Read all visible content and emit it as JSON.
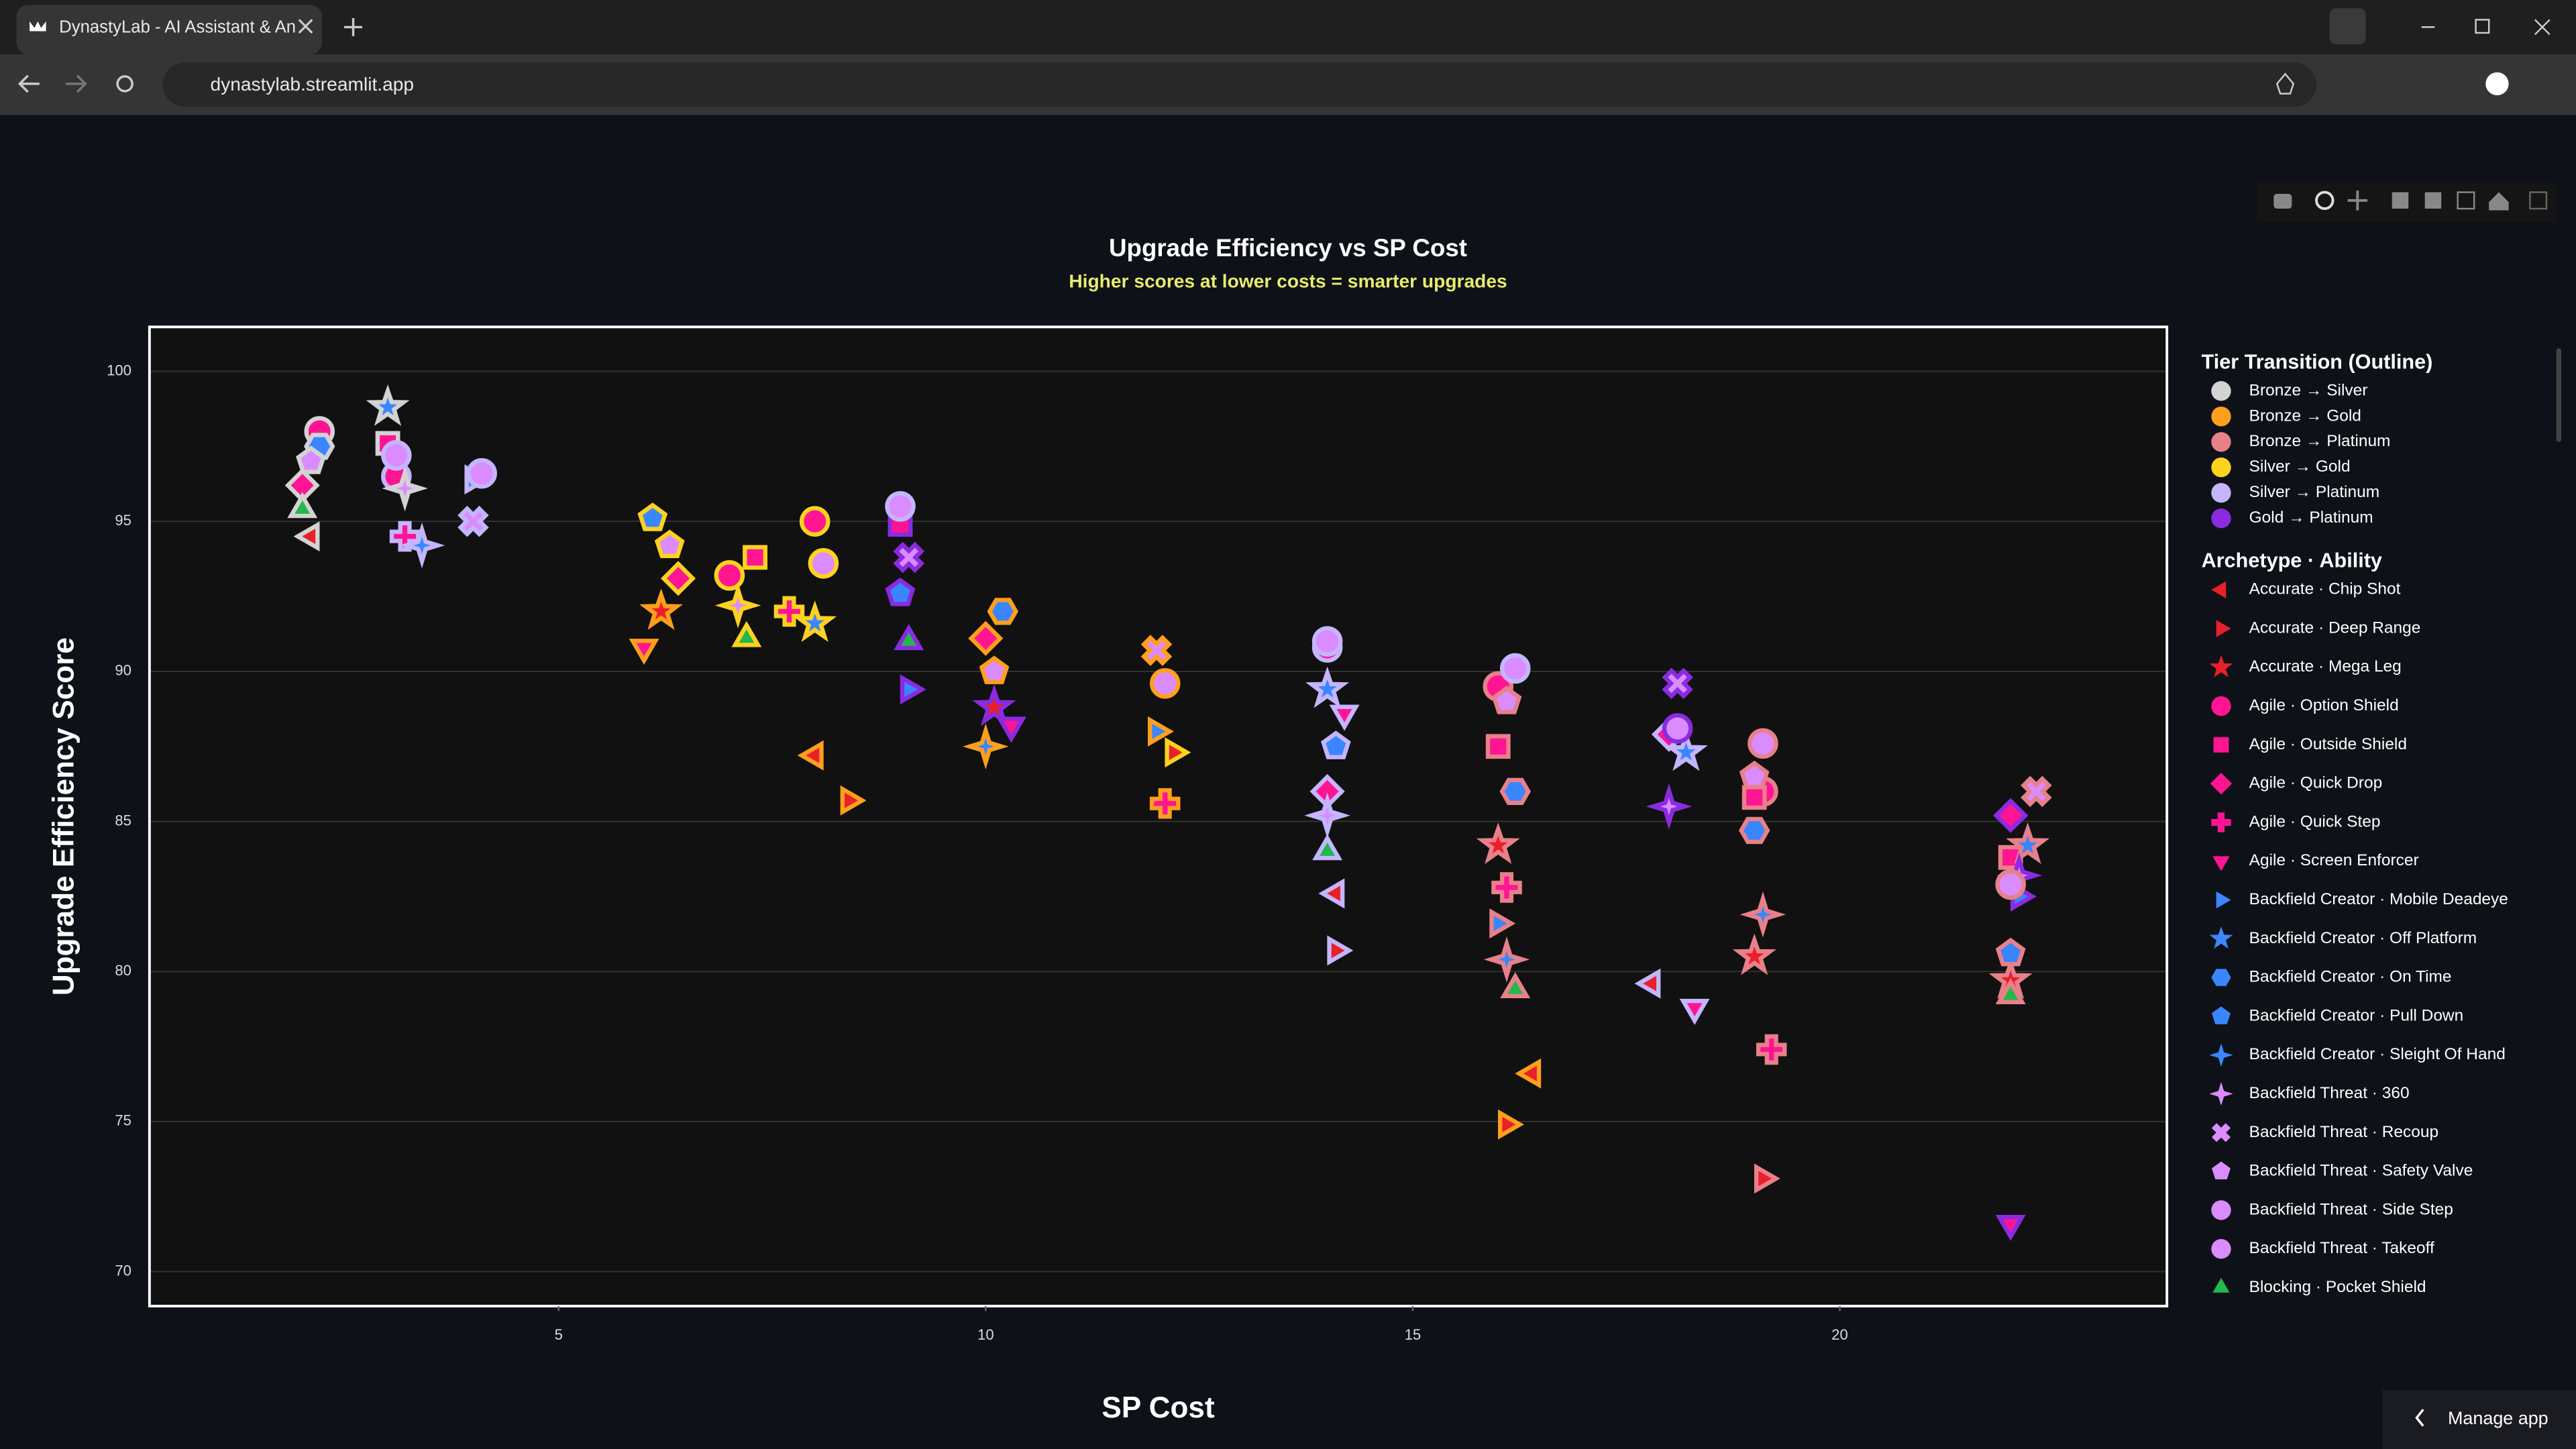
{
  "browser": {
    "tab_title": "DynastyLab - AI Assistant & An",
    "url": "dynastylab.streamlit.app",
    "manage_app": "Manage app"
  },
  "chart_data": {
    "type": "scatter",
    "title": "Upgrade Efficiency vs SP Cost",
    "subtitle": "Higher scores at lower costs = smarter upgrades",
    "x_label": "SP Cost",
    "y_label": "Upgrade Efficiency Score",
    "xlim": [
      0.21,
      23.83
    ],
    "ylim": [
      68.85,
      101.48
    ],
    "xticks": [
      5,
      10,
      15,
      20
    ],
    "yticks": [
      70,
      75,
      80,
      85,
      90,
      95,
      100
    ],
    "grid": true,
    "outline_title": "Tier Transition (Outline)",
    "outlines": [
      {
        "name": "Bronze → Silver",
        "color": "#d3d3d3"
      },
      {
        "name": "Bronze → Gold",
        "color": "#ff9f1c"
      },
      {
        "name": "Bronze → Platinum",
        "color": "#e8808a"
      },
      {
        "name": "Silver → Gold",
        "color": "#ffd21f"
      },
      {
        "name": "Silver → Platinum",
        "color": "#c4b5fd"
      },
      {
        "name": "Gold → Platinum",
        "color": "#8a2be2"
      }
    ],
    "legend_title": "Archetype · Ability",
    "series": [
      {
        "name": "Accurate · Chip Shot",
        "color": "#e8202a",
        "symbol": "triangle-left",
        "x": [
          2.1,
          8.0,
          14.1,
          16.4,
          17.8
        ],
        "values": [
          94.5,
          87.2,
          82.6,
          76.6,
          79.6
        ],
        "tiers": [
          "Bronze → Silver",
          "Bronze → Gold",
          "Silver → Platinum",
          "Bronze → Gold",
          "Silver → Platinum"
        ]
      },
      {
        "name": "Accurate · Deep Range",
        "color": "#e8202a",
        "symbol": "triangle-right",
        "x": [
          8.4,
          12.2,
          14.1,
          16.1,
          19.1
        ],
        "values": [
          85.7,
          87.3,
          80.7,
          74.9,
          73.1
        ],
        "tiers": [
          "Bronze → Gold",
          "Silver → Gold",
          "Silver → Platinum",
          "Bronze → Gold",
          "Bronze → Platinum"
        ]
      },
      {
        "name": "Accurate · Mega Leg",
        "color": "#e8202a",
        "symbol": "star",
        "x": [
          6.2,
          10.1,
          16.0,
          19.0,
          22.0
        ],
        "values": [
          92.0,
          88.8,
          84.2,
          80.5,
          79.7
        ],
        "tiers": [
          "Bronze → Gold",
          "Gold → Platinum",
          "Bronze → Platinum",
          "Bronze → Platinum",
          "Bronze → Platinum"
        ]
      },
      {
        "name": "Agile · Option Shield",
        "color": "#ff1493",
        "symbol": "circle",
        "x": [
          2.2,
          3.1,
          7.0,
          8.0,
          14.0,
          16.0,
          19.1
        ],
        "values": [
          98.0,
          96.5,
          93.2,
          95.0,
          90.8,
          89.5,
          86.0
        ],
        "tiers": [
          "Bronze → Silver",
          "Silver → Platinum",
          "Silver → Gold",
          "Silver → Gold",
          "Silver → Platinum",
          "Bronze → Platinum",
          "Bronze → Platinum"
        ]
      },
      {
        "name": "Agile · Outside Shield",
        "color": "#ff1493",
        "symbol": "square",
        "x": [
          3.0,
          7.3,
          9.0,
          16.0,
          19.0,
          22.0
        ],
        "values": [
          97.6,
          93.8,
          94.9,
          87.5,
          85.8,
          83.8
        ],
        "tiers": [
          "Bronze → Silver",
          "Silver → Gold",
          "Gold → Platinum",
          "Bronze → Platinum",
          "Bronze → Platinum",
          "Bronze → Platinum"
        ]
      },
      {
        "name": "Agile · Quick Drop",
        "color": "#ff1493",
        "symbol": "diamond",
        "x": [
          2.0,
          6.4,
          10.0,
          14.0,
          18.0,
          22.0
        ],
        "values": [
          96.2,
          93.1,
          91.1,
          86.0,
          87.9,
          85.2
        ],
        "tiers": [
          "Bronze → Silver",
          "Silver → Gold",
          "Bronze → Gold",
          "Silver → Platinum",
          "Silver → Platinum",
          "Gold → Platinum"
        ]
      },
      {
        "name": "Agile · Quick Step",
        "color": "#ff1493",
        "symbol": "cross",
        "x": [
          3.2,
          7.7,
          12.1,
          16.1,
          19.2
        ],
        "values": [
          94.5,
          92.0,
          85.6,
          82.8,
          77.4
        ],
        "tiers": [
          "Silver → Platinum",
          "Silver → Gold",
          "Bronze → Gold",
          "Bronze → Platinum",
          "Bronze → Platinum"
        ]
      },
      {
        "name": "Agile · Screen Enforcer",
        "color": "#ff1493",
        "symbol": "triangle-down",
        "x": [
          6.0,
          10.3,
          14.2,
          18.3,
          22.0
        ],
        "values": [
          90.8,
          88.2,
          88.6,
          78.8,
          71.6
        ],
        "tiers": [
          "Bronze → Gold",
          "Gold → Platinum",
          "Silver → Platinum",
          "Silver → Platinum",
          "Gold → Platinum"
        ]
      },
      {
        "name": "Backfield Creator · Mobile Deadeye",
        "color": "#3a86ff",
        "symbol": "triangle-right",
        "x": [
          4.0,
          9.1,
          12.0,
          16.0,
          22.1
        ],
        "values": [
          96.4,
          89.4,
          88.0,
          81.6,
          82.5
        ],
        "tiers": [
          "Silver → Platinum",
          "Gold → Platinum",
          "Bronze → Gold",
          "Bronze → Platinum",
          "Gold → Platinum"
        ]
      },
      {
        "name": "Backfield Creator · Off Platform",
        "color": "#3a86ff",
        "symbol": "star",
        "x": [
          3.0,
          8.0,
          14.0,
          18.2,
          22.2
        ],
        "values": [
          98.8,
          91.6,
          89.4,
          87.3,
          84.2
        ],
        "tiers": [
          "Bronze → Silver",
          "Silver → Gold",
          "Silver → Platinum",
          "Silver → Platinum",
          "Bronze → Platinum"
        ]
      },
      {
        "name": "Backfield Creator · On Time",
        "color": "#3a86ff",
        "symbol": "hexagon",
        "x": [
          2.2,
          10.2,
          16.2,
          19.0
        ],
        "values": [
          97.5,
          92.0,
          86.0,
          84.7
        ],
        "tiers": [
          "Bronze → Silver",
          "Bronze → Gold",
          "Bronze → Platinum",
          "Bronze → Platinum"
        ]
      },
      {
        "name": "Backfield Creator · Pull Down",
        "color": "#3a86ff",
        "symbol": "pentagon",
        "x": [
          6.1,
          9.0,
          14.1,
          22.0
        ],
        "values": [
          95.1,
          92.6,
          87.5,
          80.6
        ],
        "tiers": [
          "Silver → Gold",
          "Gold → Platinum",
          "Silver → Platinum",
          "Bronze → Platinum"
        ]
      },
      {
        "name": "Backfield Creator · Sleight Of Hand",
        "color": "#3a86ff",
        "symbol": "star4",
        "x": [
          3.4,
          10.0,
          16.1,
          19.1
        ],
        "values": [
          94.2,
          87.5,
          80.4,
          81.9
        ],
        "tiers": [
          "Silver → Platinum",
          "Bronze → Gold",
          "Bronze → Platinum",
          "Bronze → Platinum"
        ]
      },
      {
        "name": "Backfield Threat · 360",
        "color": "#da8cff",
        "symbol": "star4",
        "x": [
          3.2,
          7.1,
          14.0,
          18.0,
          22.1
        ],
        "values": [
          96.1,
          92.2,
          85.2,
          85.5,
          83.2
        ],
        "tiers": [
          "Bronze → Silver",
          "Silver → Gold",
          "Silver → Platinum",
          "Gold → Platinum",
          "Gold → Platinum"
        ]
      },
      {
        "name": "Backfield Threat · Recoup",
        "color": "#da8cff",
        "symbol": "x",
        "x": [
          4.0,
          9.1,
          12.0,
          18.1,
          22.3
        ],
        "values": [
          95.0,
          93.8,
          90.7,
          89.6,
          86.0
        ],
        "tiers": [
          "Silver → Platinum",
          "Gold → Platinum",
          "Bronze → Gold",
          "Gold → Platinum",
          "Bronze → Platinum"
        ]
      },
      {
        "name": "Backfield Threat · Safety Valve",
        "color": "#da8cff",
        "symbol": "pentagon",
        "x": [
          2.1,
          6.3,
          10.1,
          16.1,
          19.0
        ],
        "values": [
          97.0,
          94.2,
          90.0,
          89.0,
          86.5
        ],
        "tiers": [
          "Bronze → Silver",
          "Silver → Gold",
          "Bronze → Gold",
          "Bronze → Platinum",
          "Bronze → Platinum"
        ]
      },
      {
        "name": "Backfield Threat · Side Step",
        "color": "#da8cff",
        "symbol": "circle",
        "x": [
          3.1,
          8.1,
          14.0,
          18.1,
          22.0
        ],
        "values": [
          97.2,
          93.6,
          91.0,
          88.1,
          82.9
        ],
        "tiers": [
          "Silver → Platinum",
          "Silver → Gold",
          "Silver → Platinum",
          "Gold → Platinum",
          "Bronze → Platinum"
        ]
      },
      {
        "name": "Backfield Threat · Takeoff",
        "color": "#da8cff",
        "symbol": "circle",
        "x": [
          4.1,
          9.0,
          12.1,
          16.2,
          19.1
        ],
        "values": [
          96.6,
          95.5,
          89.6,
          90.1,
          87.6
        ],
        "tiers": [
          "Silver → Platinum",
          "Silver → Platinum",
          "Bronze → Gold",
          "Silver → Platinum",
          "Bronze → Platinum"
        ]
      },
      {
        "name": "Blocking · Pocket Shield",
        "color": "#22b84a",
        "symbol": "triangle-up",
        "x": [
          2.0,
          7.2,
          9.1,
          14.0,
          16.2,
          22.0
        ],
        "values": [
          95.4,
          91.1,
          91.0,
          84.0,
          79.4,
          79.2
        ],
        "tiers": [
          "Bronze → Silver",
          "Silver → Gold",
          "Gold → Platinum",
          "Silver → Platinum",
          "Bronze → Platinum",
          "Bronze → Platinum"
        ]
      }
    ]
  }
}
